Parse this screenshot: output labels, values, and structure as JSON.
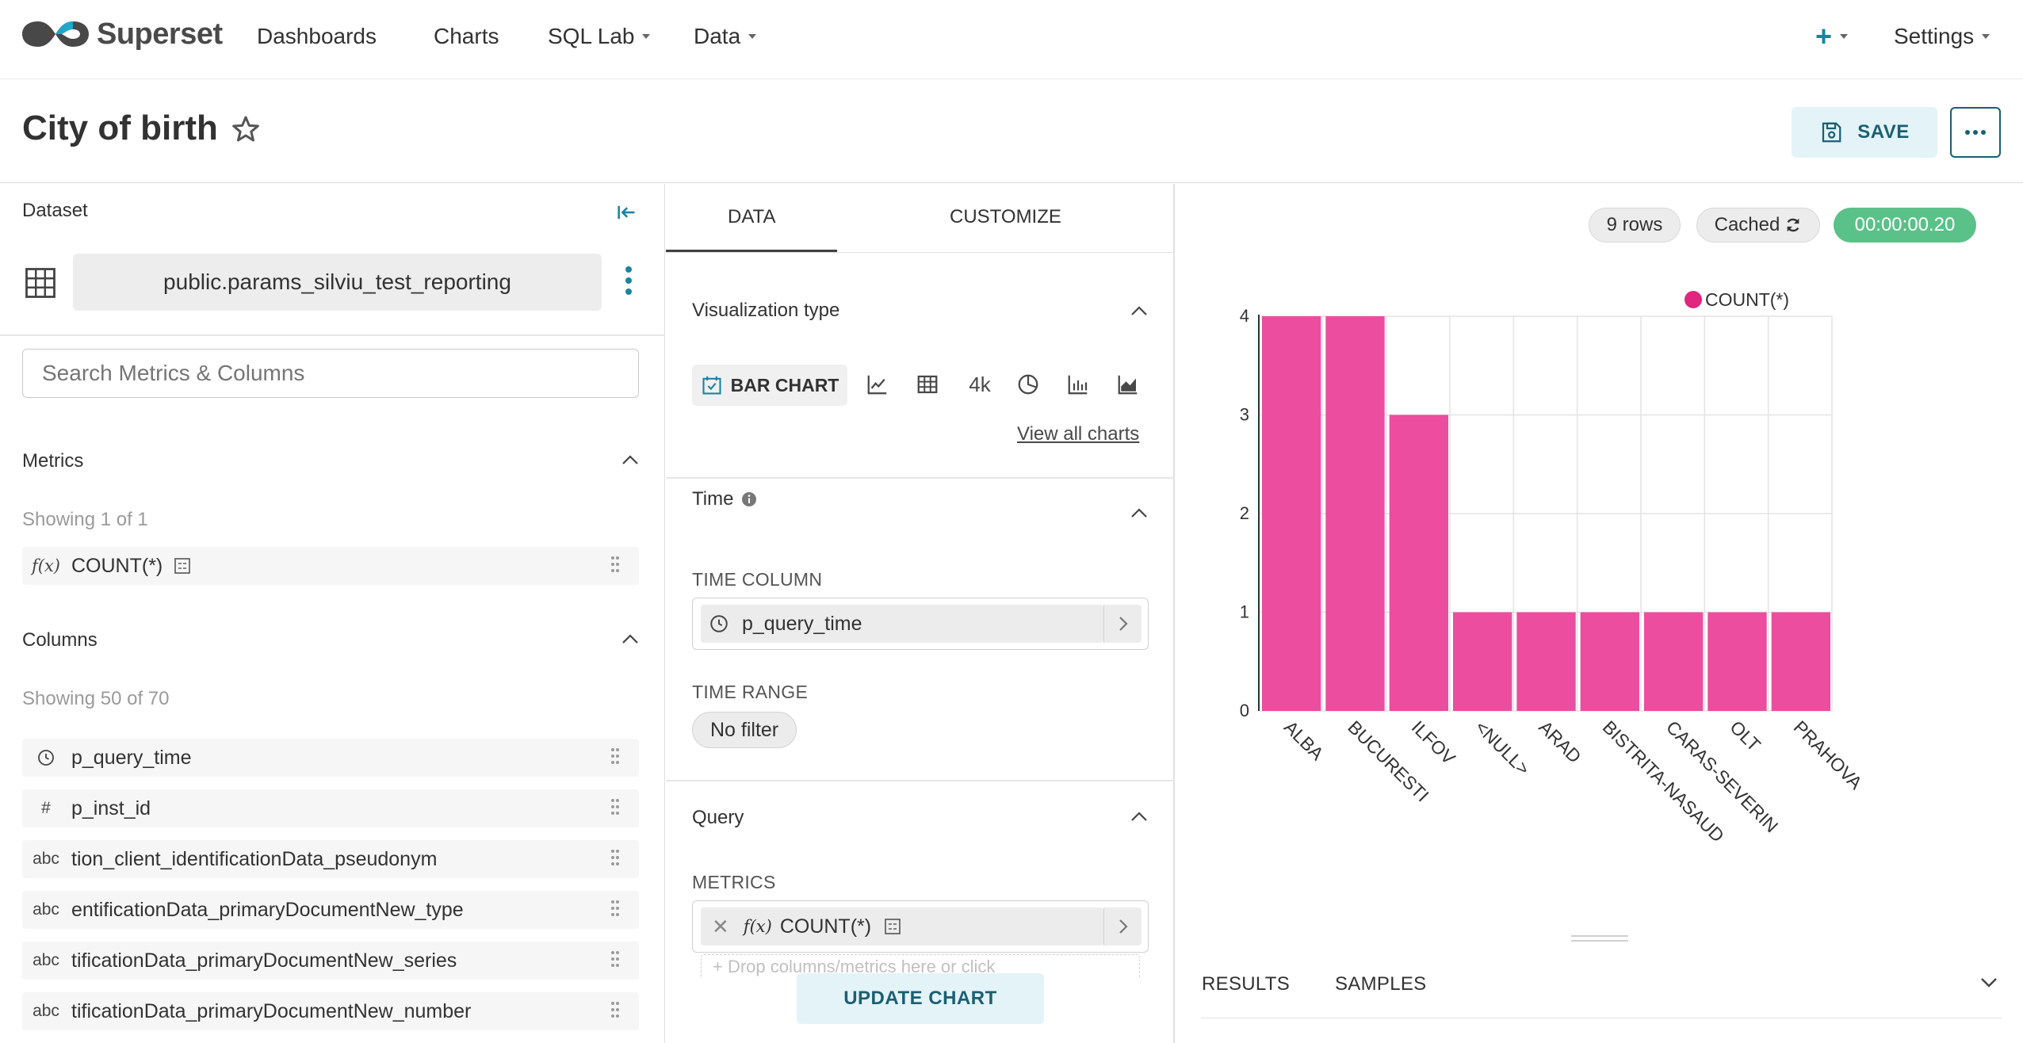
{
  "nav": {
    "brand": "Superset",
    "dashboards": "Dashboards",
    "charts": "Charts",
    "sql_lab": "SQL Lab",
    "data": "Data",
    "plus": "+",
    "settings": "Settings"
  },
  "header": {
    "title": "City of birth",
    "save_label": "SAVE"
  },
  "dataset_panel": {
    "label": "Dataset",
    "dataset_name": "public.params_silviu_test_reporting",
    "search_placeholder": "Search Metrics & Columns",
    "metrics": {
      "heading": "Metrics",
      "showing": "Showing 1 of 1",
      "items": [
        {
          "type_icon": "f(x)",
          "name": "COUNT(*)"
        }
      ]
    },
    "columns": {
      "heading": "Columns",
      "showing": "Showing 50 of 70",
      "items": [
        {
          "type_icon": "clock-icon",
          "type_text": "",
          "name": "p_query_time"
        },
        {
          "type_icon": "hash-icon",
          "type_text": "#",
          "name": "p_inst_id"
        },
        {
          "type_icon": "abc-icon",
          "type_text": "abc",
          "name": "tion_client_identificationData_pseudonym"
        },
        {
          "type_icon": "abc-icon",
          "type_text": "abc",
          "name": "entificationData_primaryDocumentNew_type"
        },
        {
          "type_icon": "abc-icon",
          "type_text": "abc",
          "name": "tificationData_primaryDocumentNew_series"
        },
        {
          "type_icon": "abc-icon",
          "type_text": "abc",
          "name": "tificationData_primaryDocumentNew_number"
        }
      ]
    }
  },
  "control_panel": {
    "tabs": [
      "DATA",
      "CUSTOMIZE"
    ],
    "active_tab": "DATA",
    "visualization": {
      "heading": "Visualization type",
      "selected": "BAR CHART",
      "big_number_label": "4k",
      "view_all": "View all charts"
    },
    "time": {
      "heading": "Time",
      "time_column_label": "TIME COLUMN",
      "time_column_value": "p_query_time",
      "time_range_label": "TIME RANGE",
      "time_range_value": "No filter"
    },
    "query": {
      "heading": "Query",
      "metrics_label": "METRICS",
      "metric_value": "COUNT(*)",
      "metric_fx": "f(x)",
      "drop_hint": "+ Drop columns/metrics here or click"
    },
    "update_label": "UPDATE CHART"
  },
  "chart_panel": {
    "rows_badge": "9 rows",
    "cached_badge": "Cached",
    "timer_badge": "00:00:00.20",
    "result_tabs": [
      "RESULTS",
      "SAMPLES"
    ]
  },
  "colors": {
    "bar": "#ec4d9e",
    "legend_dot": "#e0267f",
    "accent": "#1a85a0",
    "timer_green": "#5ac189"
  },
  "chart_data": {
    "type": "bar",
    "categories": [
      "ALBA",
      "BUCURESTI",
      "ILFOV",
      "<NULL>",
      "ARAD",
      "BISTRITA-NASAUD",
      "CARAS-SEVERIN",
      "OLT",
      "PRAHOVA"
    ],
    "series": [
      {
        "name": "COUNT(*)",
        "values": [
          4,
          4,
          3,
          1,
          1,
          1,
          1,
          1,
          1
        ]
      }
    ],
    "ylim": [
      0,
      4
    ],
    "yticks": [
      0,
      1,
      2,
      3,
      4
    ],
    "grid": true,
    "legend_position": "top-right"
  }
}
